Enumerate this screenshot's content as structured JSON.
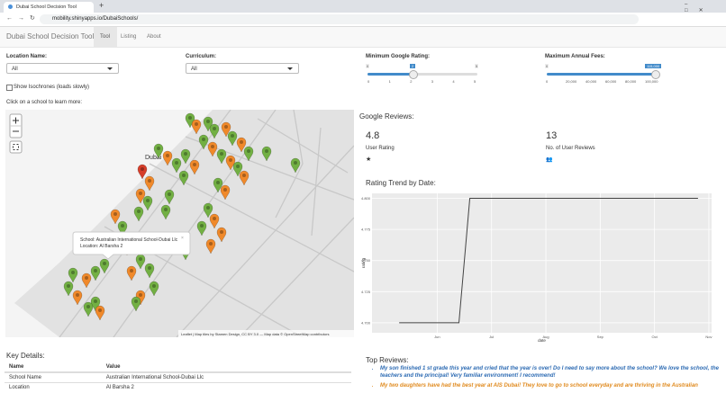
{
  "browser": {
    "tab_title": "Dubai School Decision Tool",
    "url": "mobility.shinyapps.io/DubaiSchools/"
  },
  "navbar": {
    "brand": "Dubai School Decision Tool",
    "tabs": [
      "Tool",
      "Listing",
      "About"
    ]
  },
  "filters": {
    "location": {
      "label": "Location Name:",
      "value": "All"
    },
    "curriculum": {
      "label": "Curriculum:",
      "value": "All"
    },
    "rating": {
      "label": "Minimum Google Rating:",
      "min": "0",
      "value": "2",
      "max": "5",
      "ticks": [
        "0",
        "1",
        "2",
        "3",
        "4",
        "5"
      ]
    },
    "fees": {
      "label": "Maximum Annual Fees:",
      "min": "0",
      "value": "115,000",
      "ticks": [
        "0",
        "20,000",
        "40,000",
        "60,000",
        "80,000",
        "100,000"
      ]
    },
    "isochrones": "Show Isochrones (loads slowly)"
  },
  "map": {
    "prompt": "Click on a school to learn more:",
    "city_label": "Dubai",
    "popup": [
      "School: Australian International School-Dubai Llc",
      "Location: Al Barsha 2"
    ],
    "attribution": "Leaflet | Map tiles by Stamen Design, CC BY 3.0 — Map data © OpenStreetMap contributors"
  },
  "reviews": {
    "title": "Google Reviews:",
    "rating": "4.8",
    "rating_label": "User Rating",
    "count": "13",
    "count_label": "No. of User Reviews"
  },
  "chart_data": {
    "type": "line",
    "title": "Rating Trend by Date:",
    "x": [
      5.3,
      6.4,
      6.6,
      10.8
    ],
    "series": [
      {
        "color": "#444444",
        "values": [
          4.7,
          4.7,
          4.8,
          4.8
        ]
      }
    ],
    "xlim": [
      4.8,
      11.05
    ],
    "ylim": [
      4.692,
      4.804
    ],
    "xticks": [
      {
        "value": 6,
        "label": "Jun"
      },
      {
        "value": 7,
        "label": "Jul"
      },
      {
        "value": 8,
        "label": "Aug"
      },
      {
        "value": 9,
        "label": "Sep"
      },
      {
        "value": 10,
        "label": "Oct"
      },
      {
        "value": 11,
        "label": "Nov"
      }
    ],
    "yticks": [
      {
        "value": 4.7,
        "label": "4.700"
      },
      {
        "value": 4.725,
        "label": "4.725"
      },
      {
        "value": 4.75,
        "label": "4.750"
      },
      {
        "value": 4.775,
        "label": "4.775"
      },
      {
        "value": 4.8,
        "label": "4.800"
      }
    ],
    "xlabel": "date",
    "ylabel": "rating",
    "grid": true
  },
  "key_details": {
    "title": "Key Details:",
    "header": [
      "Name",
      "Value"
    ],
    "rows": [
      [
        "School Name",
        "Australian International School-Dubai Llc"
      ],
      [
        "Location",
        "Al Barsha 2"
      ]
    ]
  },
  "top_reviews": {
    "title": "Top Reviews:",
    "items": [
      "My son finished 1 st grade this year and cried that the year is over! Do I need to say more about the school? We love the school, the teachers and the principal! Very familiar environment! I recommend!",
      "My two daughters have had the best year at AIS Dubai! They love to go to school everyday and are thriving in the Australian"
    ]
  }
}
